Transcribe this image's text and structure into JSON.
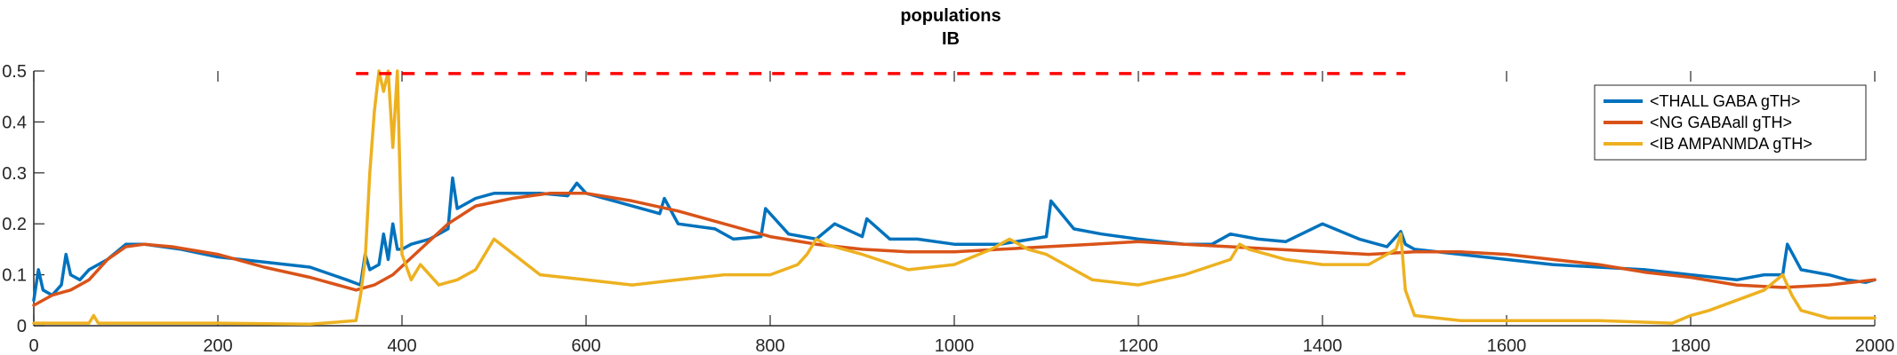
{
  "chart_data": {
    "type": "line",
    "title": "populations",
    "subtitle": "IB",
    "xlabel": "",
    "ylabel": "",
    "xlim": [
      0,
      2000
    ],
    "ylim": [
      0,
      0.5
    ],
    "x_ticks": [
      0,
      200,
      400,
      600,
      800,
      1000,
      1200,
      1400,
      1600,
      1800,
      2000
    ],
    "y_ticks": [
      0,
      0.1,
      0.2,
      0.3,
      0.4,
      0.5
    ],
    "x_tick_labels": [
      "0",
      "200",
      "400",
      "600",
      "800",
      "1000",
      "1200",
      "1400",
      "1600",
      "1800",
      "2000"
    ],
    "y_tick_labels": [
      "0",
      "0.1",
      "0.2",
      "0.3",
      "0.4",
      "0.5"
    ],
    "grid": false,
    "legend_position": "top-right",
    "reference_line": {
      "y": 0.495,
      "x_start": 350,
      "x_end": 1490,
      "style": "dashed",
      "color": "#FF0000"
    },
    "series": [
      {
        "name": "<THALL GABA gTH>",
        "color": "#0072BD",
        "x": [
          0,
          5,
          10,
          20,
          30,
          35,
          40,
          50,
          60,
          80,
          100,
          120,
          140,
          160,
          200,
          250,
          300,
          340,
          355,
          360,
          365,
          375,
          380,
          385,
          390,
          395,
          400,
          410,
          430,
          450,
          455,
          460,
          480,
          500,
          520,
          550,
          580,
          590,
          600,
          640,
          680,
          685,
          700,
          740,
          760,
          790,
          795,
          820,
          850,
          870,
          900,
          905,
          930,
          960,
          1000,
          1050,
          1100,
          1105,
          1130,
          1160,
          1200,
          1250,
          1280,
          1300,
          1330,
          1360,
          1400,
          1440,
          1470,
          1485,
          1490,
          1500,
          1550,
          1600,
          1650,
          1700,
          1750,
          1800,
          1850,
          1880,
          1900,
          1905,
          1920,
          1950,
          1970,
          1990,
          2000
        ],
        "y": [
          0.05,
          0.11,
          0.07,
          0.06,
          0.08,
          0.14,
          0.1,
          0.09,
          0.11,
          0.13,
          0.16,
          0.16,
          0.155,
          0.15,
          0.135,
          0.125,
          0.115,
          0.09,
          0.08,
          0.14,
          0.11,
          0.12,
          0.18,
          0.13,
          0.2,
          0.15,
          0.15,
          0.16,
          0.17,
          0.19,
          0.29,
          0.23,
          0.25,
          0.26,
          0.26,
          0.26,
          0.255,
          0.28,
          0.26,
          0.24,
          0.22,
          0.25,
          0.2,
          0.19,
          0.17,
          0.175,
          0.23,
          0.18,
          0.17,
          0.2,
          0.175,
          0.21,
          0.17,
          0.17,
          0.16,
          0.16,
          0.175,
          0.245,
          0.19,
          0.18,
          0.17,
          0.16,
          0.16,
          0.18,
          0.17,
          0.165,
          0.2,
          0.17,
          0.155,
          0.185,
          0.16,
          0.15,
          0.14,
          0.13,
          0.12,
          0.115,
          0.11,
          0.1,
          0.09,
          0.1,
          0.1,
          0.16,
          0.11,
          0.1,
          0.09,
          0.085,
          0.09
        ]
      },
      {
        "name": "<NG GABAall gTH>",
        "color": "#D95319",
        "x": [
          0,
          20,
          40,
          60,
          80,
          100,
          120,
          150,
          200,
          250,
          300,
          350,
          370,
          390,
          420,
          450,
          480,
          520,
          560,
          600,
          650,
          700,
          750,
          800,
          850,
          900,
          950,
          1000,
          1050,
          1100,
          1150,
          1200,
          1250,
          1300,
          1350,
          1400,
          1450,
          1500,
          1550,
          1600,
          1650,
          1700,
          1750,
          1800,
          1850,
          1900,
          1950,
          2000
        ],
        "y": [
          0.04,
          0.06,
          0.07,
          0.09,
          0.13,
          0.155,
          0.16,
          0.155,
          0.14,
          0.115,
          0.095,
          0.07,
          0.08,
          0.1,
          0.15,
          0.2,
          0.235,
          0.25,
          0.26,
          0.26,
          0.245,
          0.225,
          0.2,
          0.175,
          0.16,
          0.15,
          0.145,
          0.145,
          0.15,
          0.155,
          0.16,
          0.165,
          0.16,
          0.155,
          0.15,
          0.145,
          0.14,
          0.145,
          0.145,
          0.14,
          0.13,
          0.12,
          0.105,
          0.095,
          0.08,
          0.075,
          0.08,
          0.09
        ]
      },
      {
        "name": "<IB AMPANMDA gTH>",
        "color": "#EDB120",
        "x": [
          0,
          60,
          65,
          70,
          100,
          200,
          300,
          350,
          355,
          360,
          365,
          370,
          375,
          380,
          385,
          390,
          395,
          400,
          410,
          420,
          440,
          460,
          480,
          500,
          550,
          600,
          650,
          700,
          750,
          800,
          830,
          840,
          850,
          860,
          880,
          900,
          950,
          1000,
          1040,
          1060,
          1080,
          1100,
          1150,
          1200,
          1250,
          1300,
          1310,
          1320,
          1340,
          1360,
          1400,
          1450,
          1480,
          1485,
          1490,
          1500,
          1550,
          1600,
          1700,
          1780,
          1800,
          1820,
          1850,
          1880,
          1900,
          1910,
          1920,
          1950,
          2000
        ],
        "y": [
          0.005,
          0.005,
          0.02,
          0.005,
          0.005,
          0.005,
          0.003,
          0.01,
          0.06,
          0.13,
          0.3,
          0.42,
          0.5,
          0.46,
          0.5,
          0.35,
          0.5,
          0.14,
          0.09,
          0.12,
          0.08,
          0.09,
          0.11,
          0.17,
          0.1,
          0.09,
          0.08,
          0.09,
          0.1,
          0.1,
          0.12,
          0.14,
          0.17,
          0.16,
          0.15,
          0.14,
          0.11,
          0.12,
          0.15,
          0.17,
          0.15,
          0.14,
          0.09,
          0.08,
          0.1,
          0.13,
          0.16,
          0.15,
          0.14,
          0.13,
          0.12,
          0.12,
          0.15,
          0.18,
          0.07,
          0.02,
          0.01,
          0.01,
          0.01,
          0.005,
          0.02,
          0.03,
          0.05,
          0.07,
          0.1,
          0.06,
          0.03,
          0.015,
          0.015
        ]
      }
    ]
  }
}
